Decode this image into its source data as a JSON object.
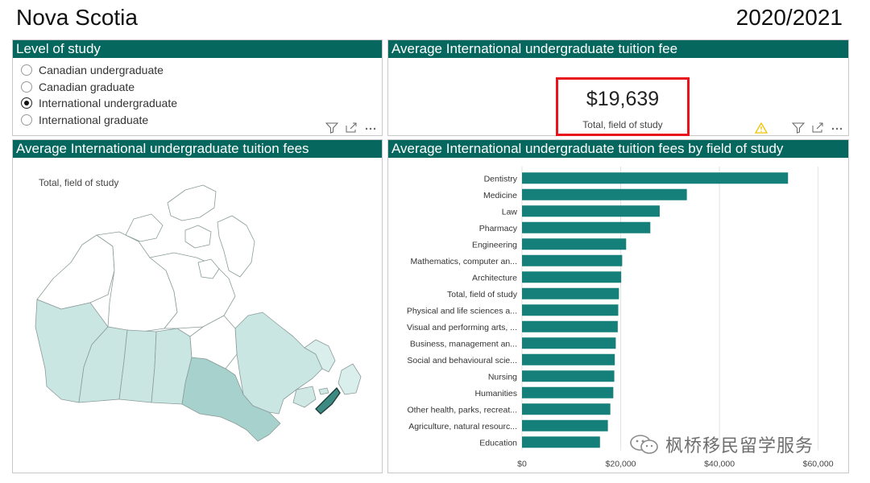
{
  "header": {
    "title": "Nova Scotia",
    "year": "2020/2021"
  },
  "level_panel": {
    "title": "Level of study",
    "options": [
      {
        "label": "Canadian undergraduate",
        "selected": false
      },
      {
        "label": "Canadian graduate",
        "selected": false
      },
      {
        "label": "International undergraduate",
        "selected": true
      },
      {
        "label": "International graduate",
        "selected": false
      }
    ]
  },
  "kpi_panel": {
    "title": "Average International undergraduate tuition fee",
    "value": "$19,639",
    "label": "Total, field of study"
  },
  "map_panel": {
    "title": "Average International undergraduate tuition fees",
    "label": "Total, field of study"
  },
  "bar_panel": {
    "title": "Average International undergraduate tuition fees by field of study"
  },
  "watermark": {
    "text": "枫桥移民留学服务"
  },
  "colors": {
    "header_bg": "#05675d",
    "bar": "#15807a",
    "highlight_border": "#e8141c",
    "warning": "#f2c200"
  },
  "chart_data": {
    "type": "bar",
    "orientation": "horizontal",
    "categories": [
      "Dentistry",
      "Medicine",
      "Law",
      "Pharmacy",
      "Engineering",
      "Mathematics, computer an...",
      "Architecture",
      "Total, field of study",
      "Physical and life sciences a...",
      "Visual and performing arts, ...",
      "Business, management an...",
      "Social and behavioural scie...",
      "Nursing",
      "Humanities",
      "Other health, parks, recreat...",
      "Agriculture, natural resourc...",
      "Education"
    ],
    "values": [
      53900,
      33400,
      27900,
      26000,
      21100,
      20300,
      20100,
      19639,
      19500,
      19400,
      19000,
      18800,
      18700,
      18500,
      17900,
      17400,
      15800
    ],
    "xlim": [
      0,
      63000
    ],
    "xticks": [
      0,
      20000,
      40000,
      60000
    ],
    "xtick_labels": [
      "$0",
      "$20,000",
      "$40,000",
      "$60,000"
    ],
    "grid": "vertical"
  }
}
